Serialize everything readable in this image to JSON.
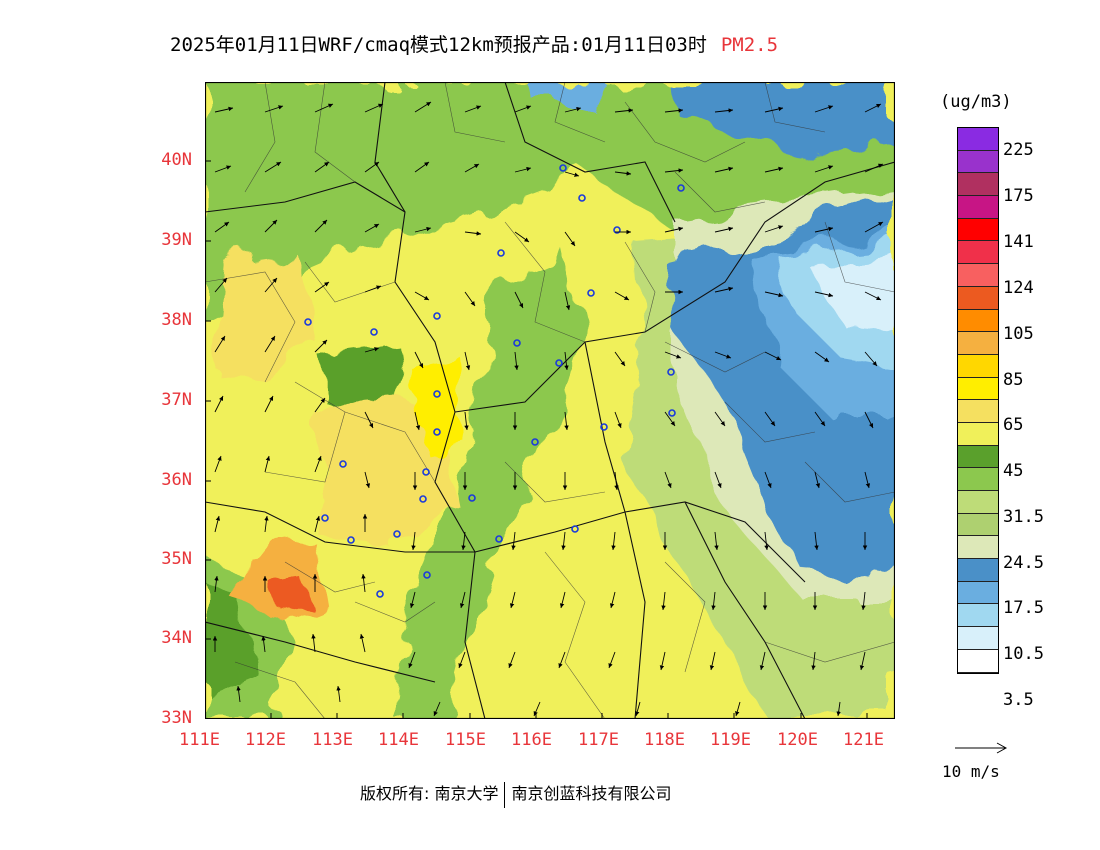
{
  "title": {
    "main": "2025年01月11日WRF/cmaq模式12km预报产品:01月11日03时",
    "variable": "PM2.5"
  },
  "map": {
    "latitude_labels": [
      "40N",
      "39N",
      "38N",
      "37N",
      "36N",
      "35N",
      "34N",
      "33N"
    ],
    "longitude_labels": [
      "111E",
      "112E",
      "113E",
      "114E",
      "115E",
      "116E",
      "117E",
      "118E",
      "119E",
      "120E",
      "121E"
    ],
    "bounds": {
      "lon": [
        111,
        121.4
      ],
      "lat": [
        33,
        41
      ]
    }
  },
  "legend": {
    "unit": "(ug/m3)",
    "labels": [
      "225",
      "175",
      "141",
      "124",
      "105",
      "85",
      "65",
      "45",
      "31.5",
      "24.5",
      "17.5",
      "10.5",
      "3.5"
    ],
    "colors": [
      "#8a2be2",
      "#9932cc",
      "#b03060",
      "#c71585",
      "#ff0000",
      "#f0304a",
      "#f86060",
      "#ec5a20",
      "#ff8c00",
      "#f5b040",
      "#ffd700",
      "#ffee00",
      "#f5e060",
      "#f0f05a",
      "#5aa02c",
      "#8cc84e",
      "#bedc78",
      "#aed070",
      "#dde8b8",
      "#4a90c8",
      "#6aaee0",
      "#a0d8f0",
      "#d8f0fa",
      "#ffffff"
    ]
  },
  "wind_reference": {
    "label": "10 m/s"
  },
  "footer": {
    "copyright": "版权所有: 南京大学",
    "company": "南京创蓝科技有限公司"
  }
}
